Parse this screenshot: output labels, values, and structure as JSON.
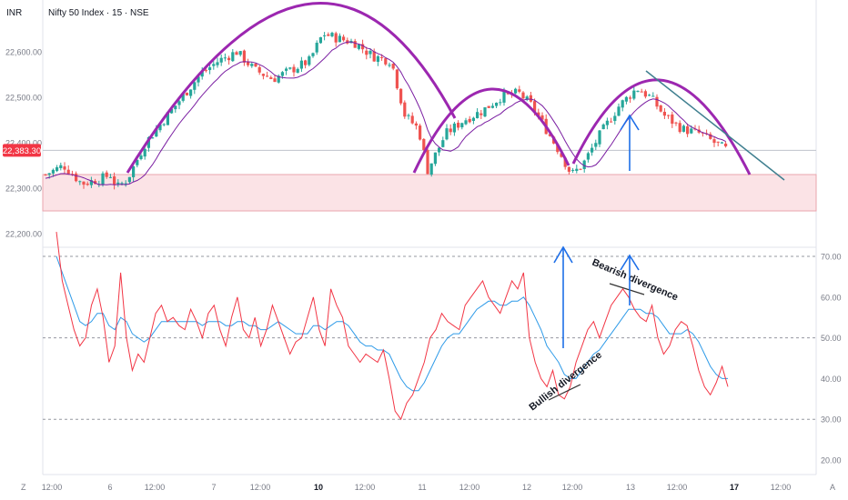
{
  "header": {
    "currency": "INR",
    "symbol_info": "Nifty 50 Index · 15 · NSE"
  },
  "price_badge": "22,383.30",
  "bottom_corner_left": "Z",
  "bottom_corner_right": "A",
  "annotations": {
    "bullish": "Bullish divergence",
    "bearish": "Bearish divergence"
  },
  "colors": {
    "up": "#26a69a",
    "down": "#ef5350",
    "ma": "#7b1fa2",
    "arc": "#9c27b0",
    "zone_fill": "#fbe3e6",
    "zone_border": "#e8a6ae",
    "rsi": "#f23645",
    "rsi_ma": "#2f9be8",
    "arrow": "#1e6fe8",
    "trendline": "#3f7f8f",
    "badge": "#f23645"
  },
  "chart_data": [
    {
      "type": "candlestick",
      "ylim": [
        22180,
        22690
      ],
      "y_ticks": [
        "22,200.00",
        "22,300.00",
        "22,400.00",
        "22,500.00",
        "22,600.00"
      ],
      "x_ticks": [
        "12:00",
        "6",
        "12:00",
        "7",
        "12:00",
        "10",
        "12:00",
        "11",
        "12:00",
        "12",
        "12:00",
        "13",
        "12:00",
        "17",
        "12:00"
      ],
      "support_zone": [
        22250,
        22330
      ],
      "last_price": 22383.3
    },
    {
      "type": "line",
      "series": [
        {
          "role": "rsi"
        },
        {
          "role": "rsi_ma"
        }
      ],
      "ylim": [
        15,
        75
      ],
      "y_ticks": [
        "70.00",
        "60.00",
        "50.00",
        "40.00",
        "30.00",
        "20.00"
      ],
      "levels": [
        70,
        50,
        30
      ],
      "rsi": [
        76,
        64,
        58,
        52,
        48,
        50,
        58,
        62,
        55,
        44,
        48,
        66,
        50,
        42,
        46,
        44,
        50,
        56,
        58,
        54,
        55,
        53,
        52,
        57,
        54,
        50,
        56,
        58,
        52,
        48,
        55,
        60,
        52,
        50,
        55,
        48,
        52,
        58,
        54,
        50,
        46,
        49,
        50,
        55,
        60,
        52,
        48,
        62,
        58,
        55,
        48,
        46,
        44,
        46,
        45,
        44,
        47,
        40,
        32,
        30,
        34,
        36,
        40,
        44,
        50,
        52,
        56,
        54,
        53,
        52,
        58,
        60,
        62,
        64,
        60,
        58,
        56,
        60,
        64,
        62,
        66,
        50,
        44,
        40,
        38,
        42,
        36,
        35,
        38,
        44,
        48,
        52,
        54,
        50,
        54,
        58,
        60,
        62,
        60,
        57,
        55,
        54,
        58,
        50,
        46,
        48,
        52,
        54,
        53,
        48,
        42,
        38,
        36,
        39,
        43,
        38
      ],
      "rsi_ma": [
        70,
        66,
        62,
        58,
        54,
        53,
        54,
        56,
        56,
        53,
        52,
        55,
        54,
        51,
        50,
        49,
        50,
        52,
        54,
        54,
        54,
        54,
        54,
        54,
        54,
        53,
        54,
        54,
        54,
        53,
        53,
        54,
        54,
        53,
        53,
        52,
        52,
        53,
        54,
        53,
        52,
        51,
        51,
        51,
        53,
        53,
        52,
        53,
        54,
        54,
        53,
        51,
        49,
        48,
        48,
        47,
        47,
        46,
        43,
        40,
        38,
        37,
        37,
        39,
        42,
        45,
        48,
        50,
        51,
        51,
        53,
        55,
        57,
        58,
        59,
        59,
        58,
        58,
        59,
        59,
        60,
        58,
        55,
        52,
        48,
        46,
        44,
        41,
        40,
        40,
        42,
        44,
        46,
        47,
        49,
        51,
        53,
        55,
        57,
        57,
        57,
        56,
        56,
        55,
        53,
        51,
        51,
        51,
        52,
        51,
        49,
        46,
        43,
        41,
        40,
        40
      ]
    }
  ]
}
